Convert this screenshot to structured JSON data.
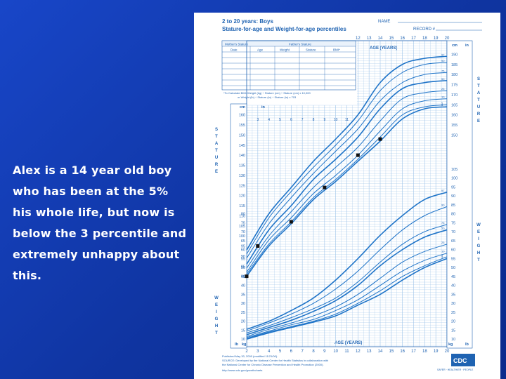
{
  "slide": {
    "caption_lines": [
      "Alex is a 14 year old boy",
      "who has been at the 5%",
      "his whole life, but now is",
      "below the 3 percentile and",
      "extremely unhappy about",
      "this."
    ]
  },
  "chart_data": {
    "type": "line",
    "title": "2 to 20 years: Boys",
    "subtitle": "Stature-for-age and Weight-for-age percentiles",
    "name_label": "NAME",
    "record_label": "RECORD #",
    "xlabel": "AGE (YEARS)",
    "x_ticks": [
      2,
      3,
      4,
      5,
      6,
      7,
      8,
      9,
      10,
      11,
      12,
      13,
      14,
      15,
      16,
      17,
      18,
      19,
      20
    ],
    "unit_labels": {
      "cm": "cm",
      "in": "in",
      "kg": "kg",
      "lb": "lb"
    },
    "stature_label": "STATURE",
    "weight_label": "WEIGHT",
    "table_header": {
      "mothers_stature": "Mother's Stature",
      "fathers_stature": "Father's Stature",
      "cols": [
        "Date",
        "Age",
        "Weight",
        "Stature",
        "BMI*"
      ]
    },
    "bmi_note": [
      "*To Calculate BMI: Weight (kg) ÷ Stature (cm) ÷ Stature (cm) x 10,000",
      "or Weight (lb) ÷ Stature (in) ÷ Stature (in) x 703"
    ],
    "stature_cm_ticks": [
      80,
      85,
      90,
      95,
      100,
      105,
      110,
      115,
      120,
      125,
      130,
      135,
      140,
      145,
      150,
      155,
      160,
      165,
      170,
      175,
      180,
      185,
      190
    ],
    "weight_kg_ticks": [
      10,
      15,
      20,
      25,
      30,
      35,
      40,
      45,
      50,
      55,
      60,
      65,
      70,
      75,
      80,
      85,
      90,
      95,
      100,
      105
    ],
    "percentiles": [
      3,
      5,
      10,
      25,
      50,
      75,
      90,
      95,
      97
    ],
    "stature_series": [
      {
        "name": "97",
        "x": [
          2,
          4,
          6,
          8,
          10,
          12,
          14,
          16,
          18,
          20
        ],
        "y": [
          93,
          111,
          124,
          137,
          148,
          160,
          176,
          185,
          188,
          189
        ]
      },
      {
        "name": "90",
        "x": [
          2,
          4,
          6,
          8,
          10,
          12,
          14,
          16,
          18,
          20
        ],
        "y": [
          91,
          109,
          122,
          134,
          145,
          157,
          172,
          181,
          185,
          186
        ]
      },
      {
        "name": "75",
        "x": [
          2,
          4,
          6,
          8,
          10,
          12,
          14,
          16,
          18,
          20
        ],
        "y": [
          89,
          106,
          119,
          131,
          142,
          153,
          167,
          176,
          180,
          181
        ]
      },
      {
        "name": "50",
        "x": [
          2,
          4,
          6,
          8,
          10,
          12,
          14,
          16,
          18,
          20
        ],
        "y": [
          86,
          103,
          115,
          128,
          138,
          149,
          163,
          173,
          176,
          177
        ]
      },
      {
        "name": "25",
        "x": [
          2,
          4,
          6,
          8,
          10,
          12,
          14,
          16,
          18,
          20
        ],
        "y": [
          84,
          100,
          112,
          124,
          134,
          144,
          157,
          168,
          171,
          172
        ]
      },
      {
        "name": "10",
        "x": [
          2,
          4,
          6,
          8,
          10,
          12,
          14,
          16,
          18,
          20
        ],
        "y": [
          82,
          98,
          109,
          121,
          130,
          140,
          152,
          163,
          167,
          168
        ]
      },
      {
        "name": "5",
        "x": [
          2,
          4,
          6,
          8,
          10,
          12,
          14,
          16,
          18,
          20
        ],
        "y": [
          81,
          96,
          107,
          119,
          128,
          138,
          149,
          160,
          164,
          165
        ]
      },
      {
        "name": "3",
        "x": [
          2,
          4,
          6,
          8,
          10,
          12,
          14,
          16,
          18,
          20
        ],
        "y": [
          80,
          95,
          106,
          118,
          127,
          137,
          147,
          158,
          163,
          164
        ]
      }
    ],
    "weight_series": [
      {
        "name": "97",
        "x": [
          2,
          4,
          6,
          8,
          10,
          12,
          14,
          16,
          18,
          20
        ],
        "y": [
          15.5,
          20,
          26,
          33,
          43,
          55,
          68,
          79,
          88,
          92
        ]
      },
      {
        "name": "90",
        "x": [
          2,
          4,
          6,
          8,
          10,
          12,
          14,
          16,
          18,
          20
        ],
        "y": [
          14.5,
          19,
          24,
          30,
          38,
          48,
          60,
          71,
          79,
          84
        ]
      },
      {
        "name": "75",
        "x": [
          2,
          4,
          6,
          8,
          10,
          12,
          14,
          16,
          18,
          20
        ],
        "y": [
          13.5,
          17.5,
          22,
          27,
          33,
          42,
          53,
          63,
          70,
          74
        ]
      },
      {
        "name": "50",
        "x": [
          2,
          4,
          6,
          8,
          10,
          12,
          14,
          16,
          18,
          20
        ],
        "y": [
          12.5,
          16.5,
          20.5,
          25.5,
          31.5,
          40,
          51,
          60,
          67,
          71
        ]
      },
      {
        "name": "25",
        "x": [
          2,
          4,
          6,
          8,
          10,
          12,
          14,
          16,
          18,
          20
        ],
        "y": [
          11.5,
          15.5,
          19,
          23,
          28,
          35,
          44,
          53,
          59,
          63
        ]
      },
      {
        "name": "10",
        "x": [
          2,
          4,
          6,
          8,
          10,
          12,
          14,
          16,
          18,
          20
        ],
        "y": [
          11,
          14.5,
          18,
          21,
          26,
          32,
          40,
          48,
          54,
          58
        ]
      },
      {
        "name": "5",
        "x": [
          2,
          4,
          6,
          8,
          10,
          12,
          14,
          16,
          18,
          20
        ],
        "y": [
          10.5,
          14,
          17,
          20,
          24,
          30,
          37,
          45,
          51,
          56
        ]
      },
      {
        "name": "3",
        "x": [
          2,
          4,
          6,
          8,
          10,
          12,
          14,
          16,
          18,
          20
        ],
        "y": [
          10,
          13.5,
          16.5,
          19.5,
          23,
          29,
          35,
          43,
          50,
          55
        ]
      }
    ],
    "patient_points": {
      "name": "Alex",
      "x": [
        2,
        3,
        6,
        9,
        12,
        14
      ],
      "y": [
        80,
        95,
        107,
        124,
        140,
        148
      ]
    },
    "footer_lines": [
      "Published May 30, 2000 (modified 11/21/00).",
      "SOURCE: Developed by the National Center for Health Statistics in collaboration with",
      "the National Center for Chronic Disease Prevention and Health Promotion (2000).",
      "http://www.cdc.gov/growthcharts"
    ],
    "logo_text": "CDC",
    "logo_tagline": "SAFER · HEALTHIER · PEOPLE",
    "grid": true
  },
  "colors": {
    "slide_bg": "#1238a8",
    "chart_blue": "#1f63b2",
    "curve_blue": "#1f74c8",
    "grid_light": "#9fc4ea",
    "text_white": "#ffffff"
  }
}
